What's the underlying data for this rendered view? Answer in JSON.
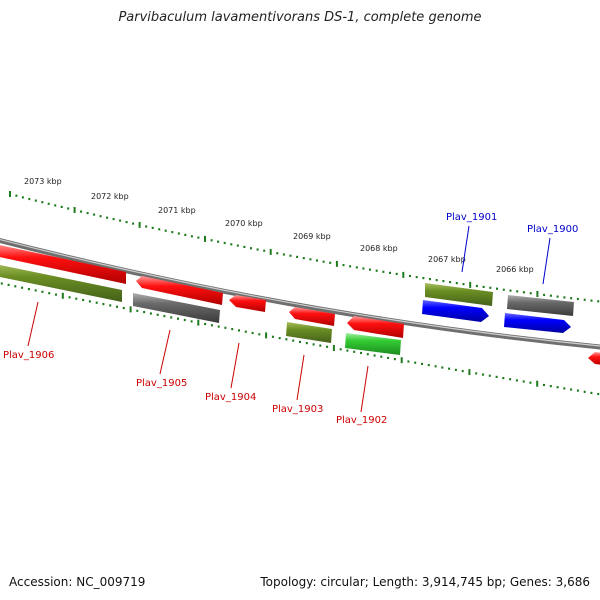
{
  "title": "Parvibaculum lavamentivorans DS-1, complete genome",
  "footer": {
    "accession": "Accession: NC_009719",
    "summary": "Topology: circular; Length: 3,914,745 bp; Genes: 3,686"
  },
  "colors": {
    "backbone": "#8a8a8a",
    "tick": "#1e7a1e",
    "forward_label": "#0000cc",
    "reverse_label": "#cc0000",
    "red": "#ff0000",
    "olive": "#6b8e23",
    "gray": "#666666",
    "blue": "#0000ff",
    "green": "#33cc33"
  },
  "scale_labels": [
    "2073 kbp",
    "2072 kbp",
    "2071 kbp",
    "2070 kbp",
    "2069 kbp",
    "2068 kbp",
    "2067 kbp",
    "2066 kbp"
  ],
  "gene_labels": [
    "Plav_1906",
    "Plav_1905",
    "Plav_1904",
    "Plav_1903",
    "Plav_1902",
    "Plav_1901",
    "Plav_1900"
  ]
}
